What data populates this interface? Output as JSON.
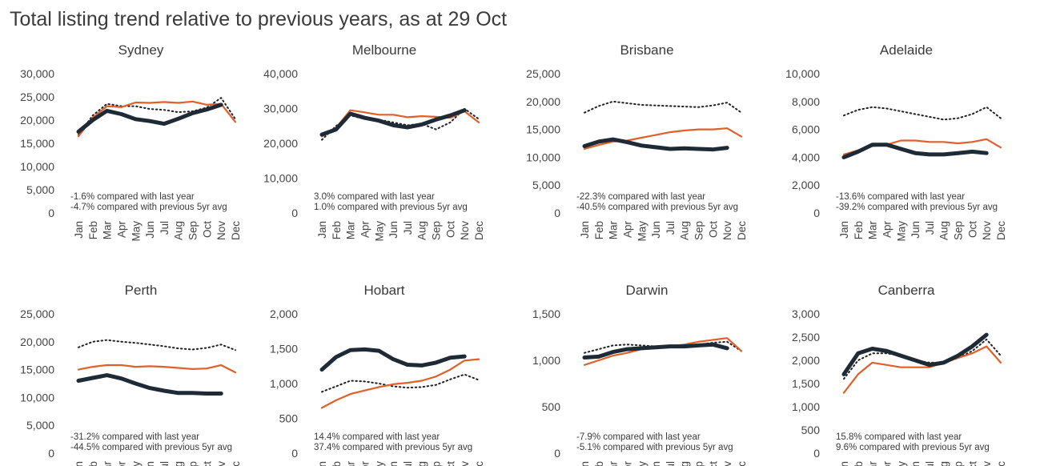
{
  "title": "Total listing trend relative to previous years, as at 29 Oct",
  "colors": {
    "current_year": "#1e2a35",
    "last_year": "#e0602a",
    "five_yr_avg": "#222222"
  },
  "chart_data": [
    {
      "type": "line",
      "city": "Sydney",
      "title": "Sydney",
      "x": [
        "Jan",
        "Feb",
        "Mar",
        "Apr",
        "May",
        "Jun",
        "Jul",
        "Aug",
        "Sep",
        "Oct",
        "Nov",
        "Dec"
      ],
      "ylim": [
        0,
        30000
      ],
      "yticks": [
        0,
        5000,
        10000,
        15000,
        20000,
        25000,
        30000
      ],
      "ytick_labels": [
        "0",
        "5,000",
        "10,000",
        "15,000",
        "20,000",
        "25,000",
        "30,000"
      ],
      "notes": [
        "-1.6% compared with last year",
        "-4.7% compared with previous 5yr avg"
      ],
      "series": [
        {
          "role": "current_year",
          "values": [
            17500,
            20000,
            22000,
            21300,
            20200,
            19800,
            19200,
            20300,
            21500,
            22300,
            23300,
            null
          ]
        },
        {
          "role": "last_year",
          "values": [
            16500,
            20500,
            23000,
            22800,
            23800,
            23700,
            23900,
            23700,
            24000,
            23300,
            23500,
            19600
          ]
        },
        {
          "role": "five_yr_avg",
          "values": [
            16800,
            21000,
            23500,
            23000,
            23000,
            22400,
            22200,
            21700,
            21900,
            22700,
            24800,
            20200
          ]
        }
      ]
    },
    {
      "type": "line",
      "city": "Melbourne",
      "title": "Melbourne",
      "x": [
        "Jan",
        "Feb",
        "Mar",
        "Apr",
        "May",
        "Jun",
        "Jul",
        "Aug",
        "Sep",
        "Oct",
        "Nov",
        "Dec"
      ],
      "ylim": [
        0,
        40000
      ],
      "yticks": [
        0,
        10000,
        20000,
        30000,
        40000
      ],
      "ytick_labels": [
        "0",
        "10,000",
        "20,000",
        "30,000",
        "40,000"
      ],
      "notes": [
        "3.0% compared with last year",
        "1.0% compared with previous 5yr avg"
      ],
      "series": [
        {
          "role": "current_year",
          "values": [
            22500,
            24000,
            28500,
            27300,
            26500,
            25200,
            24600,
            25400,
            26800,
            28000,
            29500,
            null
          ]
        },
        {
          "role": "last_year",
          "values": [
            22000,
            24500,
            29500,
            28900,
            28200,
            28200,
            27500,
            27800,
            27600,
            27300,
            29200,
            26000
          ]
        },
        {
          "role": "five_yr_avg",
          "values": [
            21000,
            25000,
            28000,
            27000,
            26800,
            26000,
            25200,
            25600,
            24000,
            26000,
            29900,
            27000
          ]
        }
      ]
    },
    {
      "type": "line",
      "city": "Brisbane",
      "title": "Brisbane",
      "x": [
        "Jan",
        "Feb",
        "Mar",
        "Apr",
        "May",
        "Jun",
        "Jul",
        "Aug",
        "Sep",
        "Oct",
        "Nov",
        "Dec"
      ],
      "ylim": [
        0,
        25000
      ],
      "yticks": [
        0,
        5000,
        10000,
        15000,
        20000,
        25000
      ],
      "ytick_labels": [
        "0",
        "5,000",
        "10,000",
        "15,000",
        "20,000",
        "25,000"
      ],
      "notes": [
        "-22.3% compared with last year",
        "-40.5% compared with previous 5yr avg"
      ],
      "series": [
        {
          "role": "current_year",
          "values": [
            12000,
            12800,
            13200,
            12700,
            12100,
            11800,
            11500,
            11600,
            11500,
            11400,
            11700,
            null
          ]
        },
        {
          "role": "last_year",
          "values": [
            11500,
            12200,
            12800,
            13000,
            13500,
            14000,
            14500,
            14800,
            15000,
            15000,
            15200,
            13700
          ]
        },
        {
          "role": "five_yr_avg",
          "values": [
            18000,
            19200,
            20000,
            19700,
            19400,
            19300,
            19200,
            19100,
            19000,
            19300,
            19800,
            18000
          ]
        }
      ]
    },
    {
      "type": "line",
      "city": "Adelaide",
      "title": "Adelaide",
      "x": [
        "Jan",
        "Feb",
        "Mar",
        "Apr",
        "May",
        "Jun",
        "Jul",
        "Aug",
        "Sep",
        "Oct",
        "Nov",
        "Dec"
      ],
      "ylim": [
        0,
        10000
      ],
      "yticks": [
        0,
        2000,
        4000,
        6000,
        8000,
        10000
      ],
      "ytick_labels": [
        "0",
        "2,000",
        "4,000",
        "6,000",
        "8,000",
        "10,000"
      ],
      "notes": [
        "-13.6% compared with last year",
        "-39.2% compared with previous 5yr avg"
      ],
      "series": [
        {
          "role": "current_year",
          "values": [
            4000,
            4400,
            4900,
            4900,
            4600,
            4300,
            4200,
            4200,
            4300,
            4400,
            4300,
            null
          ]
        },
        {
          "role": "last_year",
          "values": [
            4200,
            4500,
            4800,
            4900,
            5200,
            5200,
            5100,
            5100,
            5000,
            5100,
            5300,
            4700
          ]
        },
        {
          "role": "five_yr_avg",
          "values": [
            7000,
            7400,
            7600,
            7500,
            7300,
            7100,
            6900,
            6700,
            6800,
            7100,
            7600,
            6800
          ]
        }
      ]
    },
    {
      "type": "line",
      "city": "Perth",
      "title": "Perth",
      "x": [
        "Jan",
        "Feb",
        "Mar",
        "Apr",
        "May",
        "Jun",
        "Jul",
        "Aug",
        "Sep",
        "Oct",
        "Nov",
        "Dec"
      ],
      "ylim": [
        0,
        25000
      ],
      "yticks": [
        0,
        5000,
        10000,
        15000,
        20000,
        25000
      ],
      "ytick_labels": [
        "0",
        "5,000",
        "10,000",
        "15,000",
        "20,000",
        "25,000"
      ],
      "notes": [
        "-31.2% compared with last year",
        "-44.5% compared with previous 5yr avg"
      ],
      "series": [
        {
          "role": "current_year",
          "values": [
            13000,
            13500,
            14000,
            13400,
            12500,
            11700,
            11200,
            10800,
            10800,
            10700,
            10700,
            null
          ]
        },
        {
          "role": "last_year",
          "values": [
            15000,
            15500,
            15800,
            15800,
            15500,
            15600,
            15500,
            15300,
            15100,
            15200,
            15800,
            14500
          ]
        },
        {
          "role": "five_yr_avg",
          "values": [
            19000,
            20000,
            20300,
            20000,
            19800,
            19500,
            19200,
            18800,
            18600,
            18900,
            19500,
            18500
          ]
        }
      ]
    },
    {
      "type": "line",
      "city": "Hobart",
      "title": "Hobart",
      "x": [
        "Jan",
        "Feb",
        "Mar",
        "Apr",
        "May",
        "Jun",
        "Jul",
        "Aug",
        "Sep",
        "Oct",
        "Nov",
        "Dec"
      ],
      "ylim": [
        0,
        2000
      ],
      "yticks": [
        0,
        500,
        1000,
        1500,
        2000
      ],
      "ytick_labels": [
        "0",
        "500",
        "1,000",
        "1,500",
        "2,000"
      ],
      "notes": [
        "14.4% compared with last year",
        "37.4% compared with previous 5yr avg"
      ],
      "series": [
        {
          "role": "current_year",
          "values": [
            1200,
            1380,
            1480,
            1490,
            1470,
            1350,
            1270,
            1260,
            1300,
            1370,
            1390,
            null
          ]
        },
        {
          "role": "last_year",
          "values": [
            650,
            760,
            850,
            900,
            950,
            990,
            1010,
            1040,
            1100,
            1200,
            1330,
            1350
          ]
        },
        {
          "role": "five_yr_avg",
          "values": [
            880,
            960,
            1040,
            1030,
            1000,
            960,
            940,
            950,
            980,
            1060,
            1130,
            1050
          ]
        }
      ]
    },
    {
      "type": "line",
      "city": "Darwin",
      "title": "Darwin",
      "x": [
        "Jan",
        "Feb",
        "Mar",
        "Apr",
        "May",
        "Jun",
        "Jul",
        "Aug",
        "Sep",
        "Oct",
        "Nov",
        "Dec"
      ],
      "ylim": [
        0,
        1500
      ],
      "yticks": [
        0,
        500,
        1000,
        1500
      ],
      "ytick_labels": [
        "0",
        "500",
        "1,000",
        "1,500"
      ],
      "notes": [
        "-7.9% compared with last year",
        "-5.1% compared with previous 5yr avg"
      ],
      "series": [
        {
          "role": "current_year",
          "values": [
            1030,
            1040,
            1090,
            1120,
            1130,
            1140,
            1150,
            1150,
            1160,
            1170,
            1130,
            null
          ]
        },
        {
          "role": "last_year",
          "values": [
            950,
            1000,
            1050,
            1080,
            1120,
            1130,
            1150,
            1170,
            1200,
            1220,
            1240,
            1100
          ]
        },
        {
          "role": "five_yr_avg",
          "values": [
            1080,
            1120,
            1160,
            1170,
            1160,
            1150,
            1140,
            1150,
            1170,
            1190,
            1200,
            1100
          ]
        }
      ]
    },
    {
      "type": "line",
      "city": "Canberra",
      "title": "Canberra",
      "x": [
        "Jan",
        "Feb",
        "Mar",
        "Apr",
        "May",
        "Jun",
        "Jul",
        "Aug",
        "Sep",
        "Oct",
        "Nov",
        "Dec"
      ],
      "ylim": [
        0,
        3000
      ],
      "yticks": [
        0,
        500,
        1000,
        1500,
        2000,
        2500,
        3000
      ],
      "ytick_labels": [
        "0",
        "500",
        "1,000",
        "1,500",
        "2,000",
        "2,500",
        "3,000"
      ],
      "notes": [
        "15.8% compared with last year",
        "9.6% compared with previous 5yr avg"
      ],
      "series": [
        {
          "role": "current_year",
          "values": [
            1700,
            2150,
            2250,
            2200,
            2100,
            2000,
            1900,
            1950,
            2100,
            2300,
            2550,
            null
          ]
        },
        {
          "role": "last_year",
          "values": [
            1300,
            1700,
            1950,
            1900,
            1850,
            1850,
            1850,
            1950,
            2050,
            2150,
            2300,
            1950
          ]
        },
        {
          "role": "five_yr_avg",
          "values": [
            1600,
            2000,
            2150,
            2150,
            2100,
            2000,
            1950,
            1950,
            2050,
            2200,
            2450,
            2100
          ]
        }
      ]
    }
  ]
}
